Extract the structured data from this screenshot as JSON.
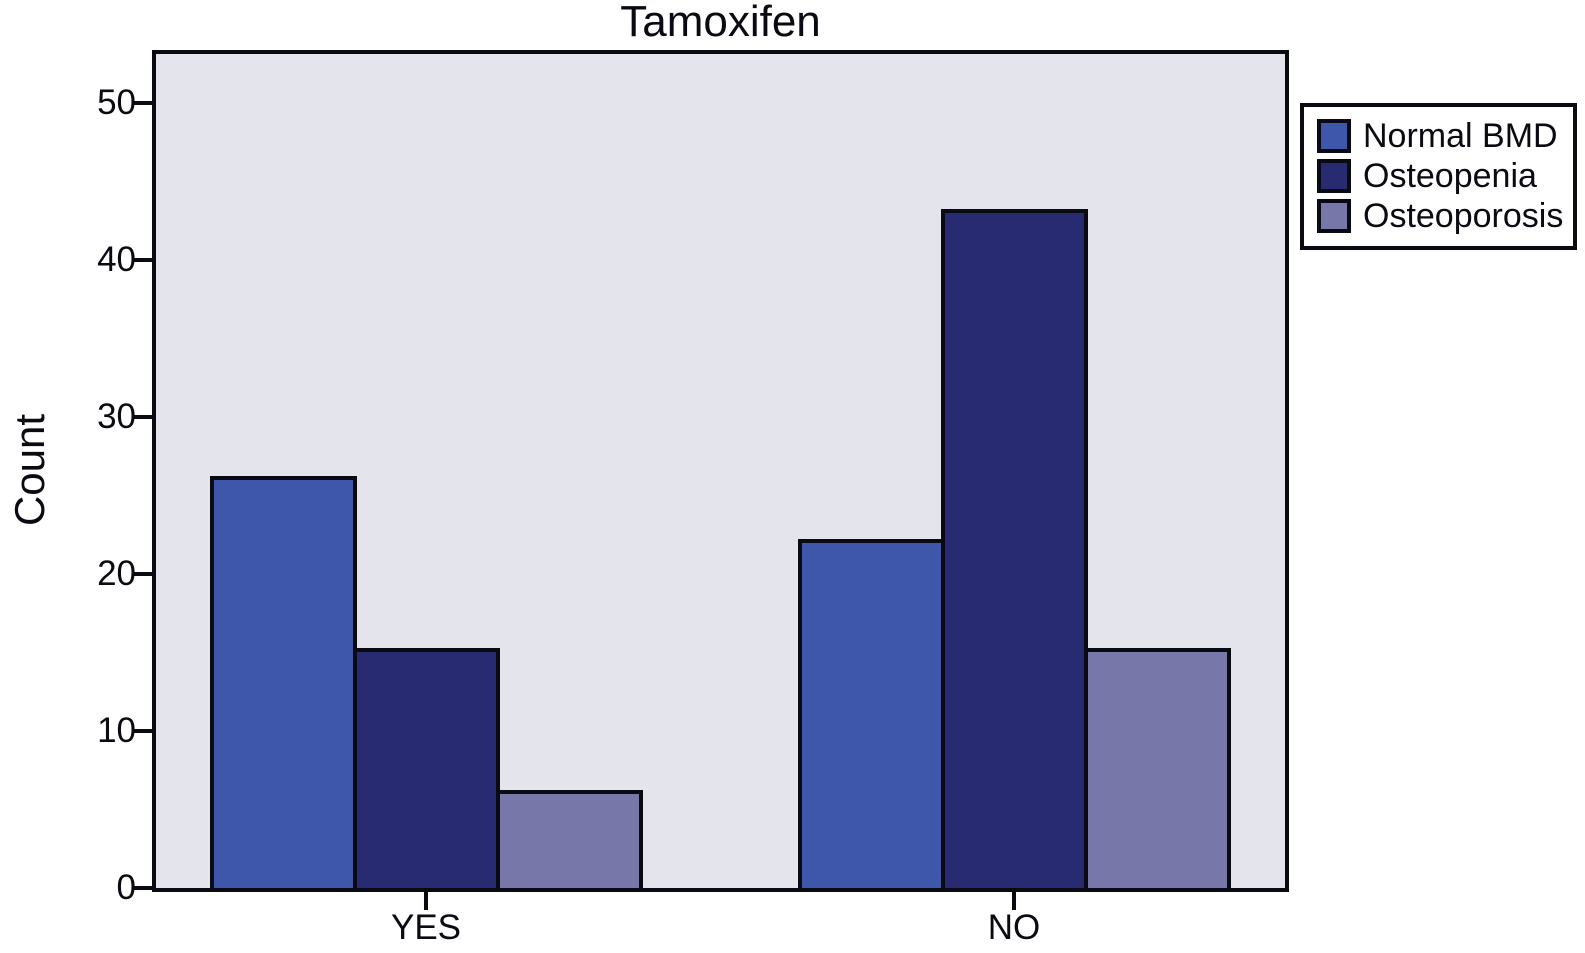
{
  "chart_data": {
    "type": "bar",
    "title": "Tamoxifen",
    "ylabel": "Count",
    "xlabel": "",
    "categories": [
      "YES",
      "NO"
    ],
    "series": [
      {
        "name": "Normal BMD",
        "color": "#3e57ab",
        "values": [
          26,
          22
        ]
      },
      {
        "name": "Osteopenia",
        "color": "#292b72",
        "values": [
          15,
          43
        ]
      },
      {
        "name": "Osteoporosis",
        "color": "#7778a9",
        "values": [
          6,
          15
        ]
      }
    ],
    "y_ticks": [
      0,
      10,
      20,
      30,
      40,
      50
    ],
    "ylim": [
      0,
      53
    ],
    "grid": false,
    "legend_position": "outside-upper-right",
    "colors": {
      "plot_background": "#e4e4ed",
      "axis": "#0a0a12",
      "page_background": "#ffffff"
    }
  }
}
